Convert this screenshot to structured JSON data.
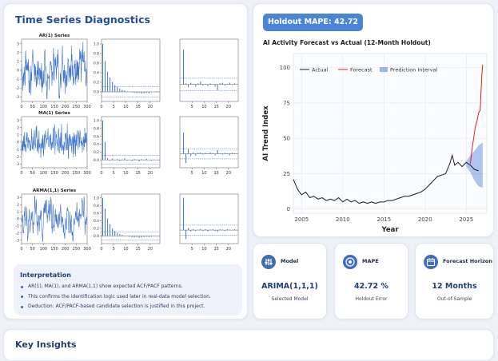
{
  "left_panel": {
    "title": "Time Series Diagnostics",
    "rows": [
      {
        "series_label": "AR(1) Series"
      },
      {
        "series_label": "MA(1) Series"
      },
      {
        "series_label": "ARMA(1,1) Series"
      }
    ],
    "interpretation": {
      "title": "Interpretation",
      "bullets": [
        "AR(1), MA(1), and ARMA(1,1) show expected ACF/PACF patterns.",
        "This confirms the identification logic used later in real-data model selection.",
        "Deduction: ACF/PACF-based candidate selection is justified in this project."
      ]
    }
  },
  "forecast_panel": {
    "badge": "Holdout MAPE: 42.72 %",
    "chart_title": "AI Activity Forecast vs Actual (12-Month Holdout)"
  },
  "metrics": [
    {
      "label": "Model",
      "value": "ARIMA(1,1,1)",
      "sub": "Selected Model",
      "icon": "sliders-icon"
    },
    {
      "label": "MAPE",
      "value": "42.72 %",
      "sub": "Holdout Error",
      "icon": "target-icon"
    },
    {
      "label": "Forecast Horizon",
      "value": "12 Months",
      "sub": "Out-of-Sample",
      "icon": "calendar-icon"
    }
  ],
  "insights": {
    "title": "Key Insights"
  },
  "chart_data": [
    {
      "type": "line",
      "title": "AR(1) Series",
      "x_ticks": [
        0,
        50,
        100,
        150,
        200,
        250,
        300
      ],
      "y_ticks": [
        -3,
        -2,
        -1,
        0,
        1,
        2,
        3
      ],
      "xlim": [
        0,
        300
      ],
      "ylim": [
        -3.5,
        3.5
      ],
      "color": "#3f74c9"
    },
    {
      "type": "bar",
      "title": "",
      "x_ticks": [
        0,
        5,
        10,
        15,
        20
      ],
      "y_ticks": [
        0.0,
        0.2,
        0.4,
        0.6,
        0.8,
        1.0
      ],
      "xlim": [
        0,
        24
      ],
      "ylim": [
        -0.2,
        1.1
      ],
      "values": [
        1.0,
        0.64,
        0.42,
        0.3,
        0.21,
        0.14,
        0.1,
        0.07,
        0.04,
        0.03,
        0.01,
        0.0,
        -0.01,
        -0.02,
        -0.03,
        -0.02,
        -0.04,
        -0.03,
        -0.02,
        -0.03,
        -0.01,
        0.0,
        0.01,
        0.0
      ],
      "band": 0.11
    },
    {
      "type": "bar",
      "title": "",
      "x_ticks": [
        5,
        10,
        15,
        20
      ],
      "y_ticks": [],
      "xlim": [
        0,
        24
      ],
      "ylim": [
        -0.3,
        0.8
      ],
      "values": [
        0.0,
        0.62,
        0.02,
        -0.05,
        0.03,
        0.01,
        -0.04,
        0.02,
        0.05,
        -0.02,
        0.01,
        -0.03,
        0.02,
        0.01,
        -0.04,
        -0.1,
        0.02,
        0.03,
        -0.02,
        0.01,
        0.03,
        -0.01,
        0.02,
        0.0
      ],
      "band": 0.11
    },
    {
      "type": "line",
      "title": "MA(1) Series",
      "x_ticks": [
        0,
        50,
        100,
        150,
        200,
        250,
        300
      ],
      "y_ticks": [
        -3,
        -2,
        -1,
        0,
        1,
        2,
        3
      ],
      "xlim": [
        0,
        300
      ],
      "ylim": [
        -3.5,
        3.5
      ],
      "color": "#3f74c9"
    },
    {
      "type": "bar",
      "title": "",
      "x_ticks": [
        0,
        5,
        10,
        15,
        20
      ],
      "y_ticks": [
        0.0,
        0.2,
        0.4,
        0.6,
        0.8,
        1.0
      ],
      "xlim": [
        0,
        24
      ],
      "ylim": [
        -0.2,
        1.1
      ],
      "values": [
        1.0,
        0.46,
        0.05,
        -0.02,
        0.03,
        -0.01,
        0.02,
        -0.03,
        0.01,
        0.04,
        -0.02,
        0.0,
        -0.03,
        0.02,
        0.01,
        -0.04,
        0.02,
        -0.01,
        0.03,
        0.0,
        -0.02,
        0.01,
        0.0,
        -0.01
      ],
      "band": 0.11
    },
    {
      "type": "bar",
      "title": "",
      "x_ticks": [
        5,
        10,
        15,
        20
      ],
      "y_ticks": [],
      "xlim": [
        0,
        24
      ],
      "ylim": [
        -0.3,
        0.8
      ],
      "values": [
        0.0,
        0.46,
        -0.2,
        0.1,
        -0.05,
        0.03,
        -0.04,
        0.02,
        0.03,
        -0.02,
        0.02,
        -0.01,
        0.03,
        0.02,
        -0.03,
        0.08,
        0.01,
        -0.02,
        0.02,
        0.01,
        -0.03,
        0.02,
        0.01,
        0.0
      ],
      "band": 0.11
    },
    {
      "type": "line",
      "title": "ARMA(1,1) Series",
      "x_ticks": [
        0,
        50,
        100,
        150,
        200,
        250,
        300
      ],
      "y_ticks": [
        -3,
        -2,
        -1,
        0,
        1,
        2,
        3
      ],
      "xlim": [
        0,
        300
      ],
      "ylim": [
        -3.5,
        3.5
      ],
      "color": "#3f74c9"
    },
    {
      "type": "bar",
      "title": "",
      "x_ticks": [
        0,
        5,
        10,
        15,
        20
      ],
      "y_ticks": [
        0.0,
        0.2,
        0.4,
        0.6,
        0.8,
        1.0
      ],
      "xlim": [
        0,
        24
      ],
      "ylim": [
        -0.2,
        1.1
      ],
      "values": [
        1.0,
        0.72,
        0.46,
        0.31,
        0.2,
        0.13,
        0.08,
        0.05,
        0.03,
        0.01,
        0.0,
        -0.02,
        -0.03,
        -0.04,
        -0.03,
        -0.05,
        -0.04,
        -0.03,
        -0.02,
        -0.03,
        -0.02,
        -0.01,
        0.0,
        0.01
      ],
      "band": 0.11
    },
    {
      "type": "bar",
      "title": "",
      "x_ticks": [
        5,
        10,
        15,
        20
      ],
      "y_ticks": [],
      "xlim": [
        0,
        24
      ],
      "ylim": [
        -0.3,
        0.8
      ],
      "values": [
        0.0,
        0.72,
        -0.2,
        0.05,
        -0.03,
        0.02,
        -0.02,
        0.01,
        0.03,
        -0.02,
        0.02,
        -0.03,
        0.01,
        0.02,
        -0.02,
        -0.04,
        0.02,
        0.01,
        -0.02,
        0.02,
        0.01,
        -0.01,
        0.02,
        0.0
      ],
      "band": 0.11
    },
    {
      "type": "line",
      "title": "AI Activity Forecast vs Actual (12-Month Holdout)",
      "xlabel": "Year",
      "ylabel": "AI Trend Index",
      "xlim": [
        2004,
        2027.5
      ],
      "ylim": [
        -3,
        110
      ],
      "x_ticks": [
        2005,
        2010,
        2015,
        2020,
        2025
      ],
      "y_ticks": [
        0,
        25,
        50,
        75,
        100
      ],
      "legend": [
        "Actual",
        "Forecast",
        "Prediction Interval"
      ],
      "legend_position": "top",
      "series": [
        {
          "name": "Actual",
          "color": "#1b1b1b",
          "x": [
            2004.0,
            2004.5,
            2005.0,
            2005.5,
            2006.0,
            2006.5,
            2007.0,
            2007.5,
            2008.0,
            2008.5,
            2009.0,
            2009.5,
            2010.0,
            2010.5,
            2011.0,
            2011.5,
            2012.0,
            2012.5,
            2013.0,
            2013.5,
            2014.0,
            2014.5,
            2015.0,
            2015.5,
            2016.0,
            2016.5,
            2017.0,
            2017.5,
            2018.0,
            2018.5,
            2019.0,
            2019.5,
            2020.0,
            2020.5,
            2021.0,
            2021.5,
            2022.0,
            2022.5,
            2023.0,
            2023.3,
            2023.6,
            2024.0,
            2024.5,
            2025.0,
            2025.5,
            2026.0,
            2026.5
          ],
          "y": [
            21,
            14,
            10,
            12,
            8,
            9,
            7,
            8,
            6,
            7,
            6,
            8,
            5,
            7,
            5,
            6,
            4,
            5,
            4,
            5,
            4,
            5,
            5,
            6,
            6,
            7,
            8,
            9,
            9,
            10,
            11,
            12,
            14,
            17,
            20,
            23,
            24,
            25,
            32,
            38,
            31,
            33,
            30,
            33,
            31,
            28,
            27
          ]
        },
        {
          "name": "Forecast",
          "color": "#e0211d",
          "x": [
            2025.5,
            2025.7,
            2025.9,
            2026.1,
            2026.3,
            2026.5,
            2026.7,
            2026.8,
            2026.9,
            2027.0
          ],
          "y": [
            32,
            42,
            50,
            58,
            62,
            68,
            70,
            83,
            95,
            102
          ]
        }
      ],
      "interval": {
        "x": [
          2025.0,
          2025.5,
          2026.0,
          2026.5,
          2027.0
        ],
        "lower": [
          30,
          26,
          20,
          16,
          15
        ],
        "upper": [
          34,
          38,
          41,
          45,
          47
        ]
      }
    }
  ]
}
